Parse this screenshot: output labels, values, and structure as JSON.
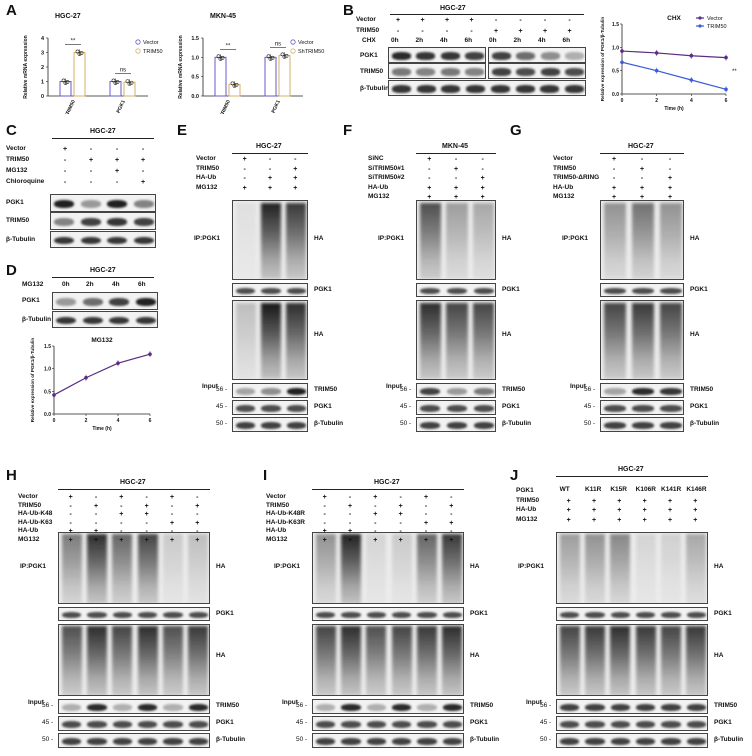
{
  "panels": {
    "A": "A",
    "B": "B",
    "C": "C",
    "D": "D",
    "E": "E",
    "F": "F",
    "G": "G",
    "H": "H",
    "I": "I",
    "J": "J"
  },
  "cell": {
    "hgc": "HGC-27",
    "mkn": "MKN-45",
    "mkn2": "MKN-45"
  },
  "rows": {
    "vector": "Vector",
    "trim50": "TRIM50",
    "chx": "CHX",
    "mg132": "MG132",
    "chloroquine": "Chloroquine",
    "haub": "HA-Ub",
    "sinc": "SiNC",
    "sitrim1": "SiTRIM50#1",
    "sitrim2": "SiTRIM50#2",
    "dring": "TRIM50-ΔRING",
    "k48": "HA-Ub-K48",
    "k63": "HA-Ub-K63",
    "k48r": "HA-Ub-K48R",
    "k63r": "HA-Ub-K63R",
    "pgk1": "PGK1"
  },
  "bands": {
    "pgk1": "PGK1",
    "trim50": "TRIM50",
    "tubulin": "β-Tubulin",
    "ha": "HA"
  },
  "labels": {
    "ip": "IP:PGK1",
    "input": "Input",
    "mw56": "56 -",
    "mw45": "45 -",
    "mw50": "50 -"
  },
  "time": {
    "t0": "0h",
    "t2": "2h",
    "t4": "4h",
    "t6": "6h"
  },
  "mutants": [
    "WT",
    "K11R",
    "K15R",
    "K106R",
    "K141R",
    "K146R"
  ],
  "chartA1": {
    "legend": [
      "Vector",
      "TRIM50"
    ],
    "ylabel": "Relative mRNA expression",
    "categories": [
      "TRIM50",
      "PGK1"
    ],
    "sig": [
      "**",
      "ns"
    ],
    "yticks": [
      "0",
      "1",
      "2",
      "3",
      "4"
    ],
    "chart_data": {
      "type": "bar",
      "categories": [
        "TRIM50",
        "PGK1"
      ],
      "series": [
        {
          "name": "Vector",
          "values": [
            1.0,
            1.0
          ]
        },
        {
          "name": "TRIM50",
          "values": [
            3.0,
            0.95
          ]
        }
      ],
      "ylabel": "Relative mRNA expression",
      "ylim": [
        0,
        4
      ]
    }
  },
  "chartA2": {
    "legend": [
      "Vector",
      "ShTRIM50"
    ],
    "ylabel": "Relative mRNA expression",
    "categories": [
      "TRIM50",
      "PGK1"
    ],
    "sig": [
      "**",
      "ns"
    ],
    "yticks": [
      "0.0",
      "0.5",
      "1.0",
      "1.5"
    ],
    "chart_data": {
      "type": "bar",
      "categories": [
        "TRIM50",
        "PGK1"
      ],
      "series": [
        {
          "name": "Vector",
          "values": [
            1.0,
            1.0
          ]
        },
        {
          "name": "ShTRIM50",
          "values": [
            0.3,
            1.05
          ]
        }
      ],
      "ylabel": "Relative mRNA expression",
      "ylim": [
        0,
        1.5
      ]
    }
  },
  "chartB": {
    "title": "CHX",
    "legend": [
      "Vector",
      "TRIM50"
    ],
    "ylabel": "Relative expression of PGK1/β-Tubulin",
    "xlabel": "Time (h)",
    "sig": "**",
    "yticks": [
      "0.0",
      "0.5",
      "1.0",
      "1.5"
    ],
    "xticks": [
      "0",
      "2",
      "4",
      "6"
    ],
    "chart_data": {
      "type": "line",
      "x": [
        0,
        2,
        4,
        6
      ],
      "series": [
        {
          "name": "Vector",
          "values": [
            0.92,
            0.88,
            0.82,
            0.78
          ]
        },
        {
          "name": "TRIM50",
          "values": [
            0.68,
            0.5,
            0.3,
            0.1
          ]
        }
      ],
      "xlabel": "Time (h)",
      "ylabel": "Relative expression of PGK1/β-Tubulin",
      "ylim": [
        0,
        1.5
      ],
      "title": "CHX"
    }
  },
  "chartD": {
    "title": "MG132",
    "ylabel": "Relative expression of PGK1/β-Tubulin",
    "xlabel": "Time (h)",
    "yticks": [
      "0.0",
      "0.5",
      "1.0",
      "1.5"
    ],
    "xticks": [
      "0",
      "2",
      "4",
      "6"
    ],
    "chart_data": {
      "type": "line",
      "x": [
        0,
        2,
        4,
        6
      ],
      "series": [
        {
          "values": [
            0.42,
            0.8,
            1.12,
            1.32
          ]
        }
      ],
      "xlabel": "Time (h)",
      "ylabel": "Relative expression of PGK1/β-Tubulin",
      "ylim": [
        0,
        1.5
      ],
      "title": "MG132"
    }
  },
  "colors": {
    "vector": "#5b2c82",
    "trim50": "#3b5bdb",
    "barT": "#d4b26a",
    "barV": "#6a5acd"
  }
}
